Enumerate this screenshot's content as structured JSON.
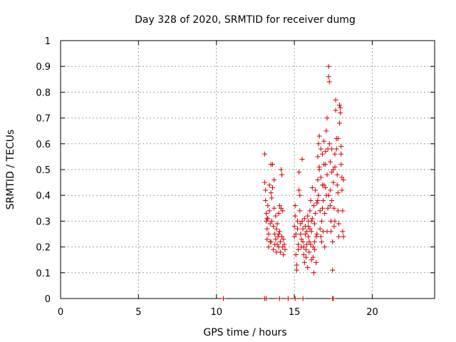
{
  "chart_data": {
    "type": "scatter",
    "title": "Day 328 of 2020, SRMTID for receiver dumg",
    "xlabel": "GPS time / hours",
    "ylabel": "SRMTID / TECUs",
    "xlim": [
      0,
      24
    ],
    "ylim": [
      0,
      1
    ],
    "x_ticks": [
      0,
      5,
      10,
      15,
      20
    ],
    "x_tick_labels": [
      "0",
      "5",
      "10",
      "15",
      "20"
    ],
    "y_ticks": [
      0,
      0.1,
      0.2,
      0.3,
      0.4,
      0.5,
      0.6,
      0.7,
      0.8,
      0.9,
      1
    ],
    "y_tick_labels": [
      "0",
      "0.1",
      "0.2",
      "0.3",
      "0.4",
      "0.5",
      "0.6",
      "0.7",
      "0.8",
      "0.9",
      "1"
    ],
    "grid": true,
    "marker": "+",
    "color": "#d40000",
    "series": [
      {
        "name": "SRMTID",
        "points": [
          [
            10.45,
            0.0
          ],
          [
            13.1,
            0.0
          ],
          [
            13.2,
            0.0
          ],
          [
            14.05,
            0.0
          ],
          [
            14.6,
            0.0
          ],
          [
            15.05,
            0.0
          ],
          [
            15.55,
            0.0
          ],
          [
            17.45,
            0.0
          ],
          [
            17.5,
            0.0
          ],
          [
            13.1,
            0.56
          ],
          [
            13.1,
            0.45
          ],
          [
            13.15,
            0.42
          ],
          [
            13.15,
            0.38
          ],
          [
            13.2,
            0.33
          ],
          [
            13.2,
            0.3
          ],
          [
            13.25,
            0.27
          ],
          [
            13.25,
            0.23
          ],
          [
            13.3,
            0.36
          ],
          [
            13.3,
            0.31
          ],
          [
            13.35,
            0.25
          ],
          [
            13.35,
            0.2
          ],
          [
            13.4,
            0.44
          ],
          [
            13.4,
            0.34
          ],
          [
            13.45,
            0.29
          ],
          [
            13.45,
            0.22
          ],
          [
            13.5,
            0.41
          ],
          [
            13.5,
            0.52
          ],
          [
            13.55,
            0.39
          ],
          [
            13.55,
            0.3
          ],
          [
            13.6,
            0.52
          ],
          [
            13.6,
            0.43
          ],
          [
            13.65,
            0.28
          ],
          [
            13.65,
            0.19
          ],
          [
            13.7,
            0.46
          ],
          [
            13.7,
            0.35
          ],
          [
            13.75,
            0.25
          ],
          [
            13.75,
            0.21
          ],
          [
            13.8,
            0.32
          ],
          [
            13.8,
            0.23
          ],
          [
            13.85,
            0.27
          ],
          [
            13.85,
            0.18
          ],
          [
            13.9,
            0.29
          ],
          [
            13.95,
            0.24
          ],
          [
            14.0,
            0.33
          ],
          [
            14.0,
            0.2
          ],
          [
            14.05,
            0.36
          ],
          [
            14.05,
            0.26
          ],
          [
            14.1,
            0.22
          ],
          [
            14.1,
            0.18
          ],
          [
            14.15,
            0.5
          ],
          [
            14.15,
            0.35
          ],
          [
            14.2,
            0.48
          ],
          [
            14.2,
            0.24
          ],
          [
            14.25,
            0.34
          ],
          [
            14.25,
            0.2
          ],
          [
            14.3,
            0.23
          ],
          [
            14.3,
            0.17
          ],
          [
            14.35,
            0.21
          ],
          [
            14.4,
            0.19
          ],
          [
            13.25,
            0.31
          ],
          [
            13.5,
            0.22
          ],
          [
            13.9,
            0.21
          ],
          [
            14.0,
            0.25
          ],
          [
            15.0,
            0.28
          ],
          [
            15.0,
            0.24
          ],
          [
            15.05,
            0.36
          ],
          [
            15.05,
            0.32
          ],
          [
            15.1,
            0.25
          ],
          [
            15.1,
            0.17
          ],
          [
            15.15,
            0.11
          ],
          [
            15.15,
            0.13
          ],
          [
            15.2,
            0.3
          ],
          [
            15.2,
            0.27
          ],
          [
            15.25,
            0.21
          ],
          [
            15.25,
            0.19
          ],
          [
            15.3,
            0.49
          ],
          [
            15.3,
            0.42
          ],
          [
            15.35,
            0.4
          ],
          [
            15.35,
            0.34
          ],
          [
            15.4,
            0.29
          ],
          [
            15.4,
            0.25
          ],
          [
            15.45,
            0.23
          ],
          [
            15.45,
            0.2
          ],
          [
            15.5,
            0.54
          ],
          [
            15.5,
            0.3
          ],
          [
            15.55,
            0.27
          ],
          [
            15.55,
            0.22
          ],
          [
            15.6,
            0.2
          ],
          [
            15.6,
            0.17
          ],
          [
            15.65,
            0.14
          ],
          [
            15.65,
            0.31
          ],
          [
            15.7,
            0.28
          ],
          [
            15.7,
            0.25
          ],
          [
            15.75,
            0.19
          ],
          [
            15.75,
            0.16
          ],
          [
            15.8,
            0.26
          ],
          [
            15.8,
            0.21
          ],
          [
            15.85,
            0.32
          ],
          [
            15.85,
            0.12
          ],
          [
            15.9,
            0.3
          ],
          [
            15.9,
            0.24
          ],
          [
            15.95,
            0.22
          ],
          [
            15.95,
            0.18
          ],
          [
            16.0,
            0.34
          ],
          [
            16.0,
            0.27
          ],
          [
            16.05,
            0.38
          ],
          [
            16.05,
            0.21
          ],
          [
            16.1,
            0.26
          ],
          [
            16.1,
            0.15
          ],
          [
            16.15,
            0.43
          ],
          [
            16.15,
            0.31
          ],
          [
            16.2,
            0.2
          ],
          [
            16.2,
            0.16
          ],
          [
            16.25,
            0.36
          ],
          [
            16.25,
            0.1
          ],
          [
            16.3,
            0.29
          ],
          [
            16.3,
            0.19
          ],
          [
            16.35,
            0.42
          ],
          [
            16.35,
            0.33
          ],
          [
            16.4,
            0.24
          ],
          [
            16.4,
            0.14
          ],
          [
            16.45,
            0.37
          ],
          [
            16.45,
            0.25
          ],
          [
            16.5,
            0.55
          ],
          [
            16.5,
            0.46
          ],
          [
            16.55,
            0.6
          ],
          [
            16.55,
            0.4
          ],
          [
            16.6,
            0.63
          ],
          [
            16.6,
            0.51
          ],
          [
            16.65,
            0.34
          ],
          [
            16.65,
            0.27
          ],
          [
            16.7,
            0.58
          ],
          [
            16.7,
            0.47
          ],
          [
            16.75,
            0.3
          ],
          [
            16.75,
            0.22
          ],
          [
            16.8,
            0.56
          ],
          [
            16.8,
            0.44
          ],
          [
            16.85,
            0.38
          ],
          [
            16.85,
            0.26
          ],
          [
            16.9,
            0.61
          ],
          [
            16.9,
            0.52
          ],
          [
            16.95,
            0.33
          ],
          [
            16.95,
            0.2
          ],
          [
            17.0,
            0.57
          ],
          [
            17.0,
            0.43
          ],
          [
            17.05,
            0.65
          ],
          [
            17.05,
            0.4
          ],
          [
            17.1,
            0.7
          ],
          [
            17.1,
            0.48
          ],
          [
            17.15,
            0.58
          ],
          [
            17.15,
            0.35
          ],
          [
            17.2,
            0.9
          ],
          [
            17.2,
            0.86
          ],
          [
            17.25,
            0.84
          ],
          [
            17.25,
            0.6
          ],
          [
            17.3,
            0.53
          ],
          [
            17.3,
            0.42
          ],
          [
            17.35,
            0.3
          ],
          [
            17.35,
            0.26
          ],
          [
            17.4,
            0.49
          ],
          [
            17.4,
            0.38
          ],
          [
            17.45,
            0.22
          ],
          [
            17.45,
            0.11
          ],
          [
            17.5,
            0.5
          ],
          [
            17.5,
            0.45
          ],
          [
            17.55,
            0.35
          ],
          [
            17.55,
            0.28
          ],
          [
            17.6,
            0.56
          ],
          [
            17.6,
            0.51
          ],
          [
            17.65,
            0.77
          ],
          [
            17.65,
            0.73
          ],
          [
            17.7,
            0.62
          ],
          [
            17.7,
            0.58
          ],
          [
            17.75,
            0.48
          ],
          [
            17.75,
            0.44
          ],
          [
            17.8,
            0.41
          ],
          [
            17.8,
            0.34
          ],
          [
            17.85,
            0.29
          ],
          [
            17.85,
            0.24
          ],
          [
            17.9,
            0.75
          ],
          [
            17.9,
            0.68
          ],
          [
            17.95,
            0.74
          ],
          [
            17.95,
            0.72
          ],
          [
            18.0,
            0.59
          ],
          [
            18.0,
            0.52
          ],
          [
            18.05,
            0.47
          ],
          [
            18.05,
            0.42
          ],
          [
            18.1,
            0.34
          ],
          [
            18.1,
            0.26
          ],
          [
            18.15,
            0.24
          ],
          [
            18.15,
            0.46
          ],
          [
            16.6,
            0.5
          ],
          [
            16.8,
            0.35
          ],
          [
            17.0,
            0.52
          ],
          [
            17.2,
            0.4
          ],
          [
            17.4,
            0.58
          ],
          [
            17.6,
            0.3
          ],
          [
            17.8,
            0.62
          ],
          [
            18.0,
            0.56
          ],
          [
            15.9,
            0.28
          ],
          [
            16.1,
            0.3
          ],
          [
            16.3,
            0.22
          ],
          [
            16.5,
            0.38
          ],
          [
            16.7,
            0.24
          ],
          [
            16.9,
            0.44
          ],
          [
            17.1,
            0.26
          ],
          [
            17.3,
            0.36
          ]
        ]
      }
    ]
  }
}
